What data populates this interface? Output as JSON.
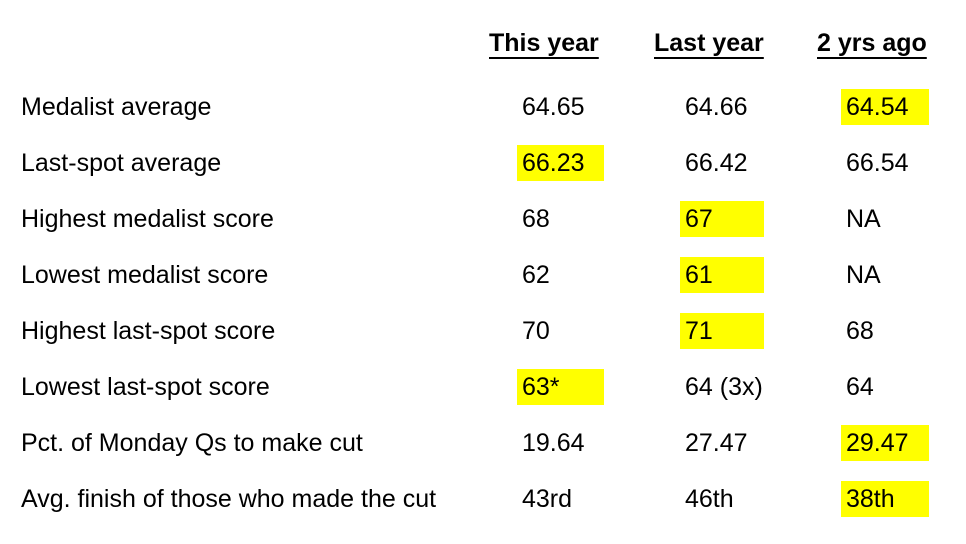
{
  "headers": [
    "This year",
    "Last year",
    "2 yrs ago"
  ],
  "highlight_color": "#ffff00",
  "rows": [
    {
      "label": "Medalist average",
      "values": [
        "64.65",
        "64.66",
        "64.54"
      ],
      "highlighted": [
        false,
        false,
        true
      ]
    },
    {
      "label": "Last-spot average",
      "values": [
        "66.23",
        "66.42",
        "66.54"
      ],
      "highlighted": [
        true,
        false,
        false
      ]
    },
    {
      "label": "Highest medalist score",
      "values": [
        "68",
        "67",
        "NA"
      ],
      "highlighted": [
        false,
        true,
        false
      ]
    },
    {
      "label": "Lowest medalist score",
      "values": [
        "62",
        "61",
        "NA"
      ],
      "highlighted": [
        false,
        true,
        false
      ]
    },
    {
      "label": "Highest last-spot score",
      "values": [
        "70",
        "71",
        "68"
      ],
      "highlighted": [
        false,
        true,
        false
      ]
    },
    {
      "label": "Lowest last-spot score",
      "values": [
        "63*",
        "64 (3x)",
        "64"
      ],
      "highlighted": [
        true,
        false,
        false
      ]
    },
    {
      "label": "Pct. of Monday Qs to make cut",
      "values": [
        "19.64",
        "27.47",
        "29.47"
      ],
      "highlighted": [
        false,
        false,
        true
      ]
    },
    {
      "label": "Avg. finish of those who made the cut",
      "values": [
        "43rd",
        "46th",
        "38th"
      ],
      "highlighted": [
        false,
        false,
        true
      ]
    }
  ]
}
